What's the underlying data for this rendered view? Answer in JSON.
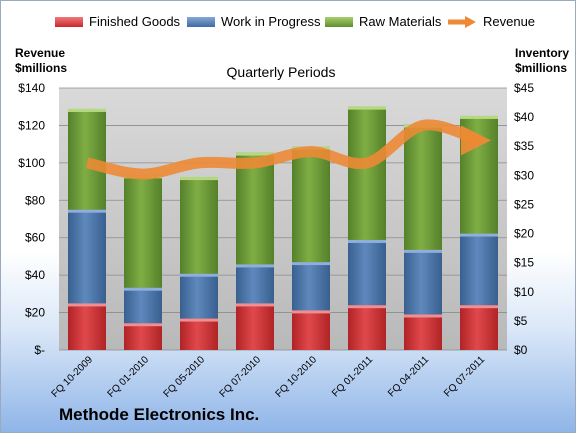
{
  "legend": {
    "finished": "Finished Goods",
    "wip": "Work in Progress",
    "raw": "Raw Materials",
    "revenue": "Revenue"
  },
  "axis": {
    "left_title_line1": "Revenue",
    "left_title_line2": "$millions",
    "right_title_line1": "Inventory",
    "right_title_line2": "$millions"
  },
  "company": "Methode Electronics Inc.",
  "colors": {
    "finished": "#d93a3d",
    "wip": "#4f7ab0",
    "raw": "#76a43d",
    "revenue": "#ec8a35"
  },
  "chart_data": {
    "type": "bar",
    "title": "Quarterly Periods",
    "stacked": true,
    "categories": [
      "FQ 10-2009",
      "FQ 01-2010",
      "FQ 05-2010",
      "FQ 07-2010",
      "FQ 10-2010",
      "FQ 01-2011",
      "FQ 04-2011",
      "FQ 07-2011"
    ],
    "series": [
      {
        "name": "Finished Goods",
        "axis": "right",
        "values": [
          8.0,
          4.6,
          5.4,
          8.0,
          6.8,
          7.7,
          6.1,
          7.7
        ]
      },
      {
        "name": "Work in Progress",
        "axis": "right",
        "values": [
          16.1,
          6.1,
          7.7,
          6.7,
          8.3,
          11.2,
          11.1,
          12.3
        ]
      },
      {
        "name": "Raw Materials",
        "axis": "right",
        "values": [
          17.3,
          19.3,
          16.6,
          19.2,
          19.8,
          22.9,
          21.5,
          20.2
        ]
      },
      {
        "name": "Revenue",
        "axis": "left",
        "type": "line",
        "values": [
          100,
          94,
          100,
          100,
          106,
          100,
          120,
          112
        ]
      }
    ],
    "ylim_left": [
      0,
      140
    ],
    "left_ticks": [
      "$-",
      "$20",
      "$40",
      "$60",
      "$80",
      "$100",
      "$120",
      "$140"
    ],
    "ylim_right": [
      0,
      45
    ],
    "right_ticks": [
      "$0",
      "$5",
      "$10",
      "$15",
      "$20",
      "$25",
      "$30",
      "$35",
      "$40",
      "$45"
    ],
    "grid": true,
    "legend_position": "top"
  }
}
